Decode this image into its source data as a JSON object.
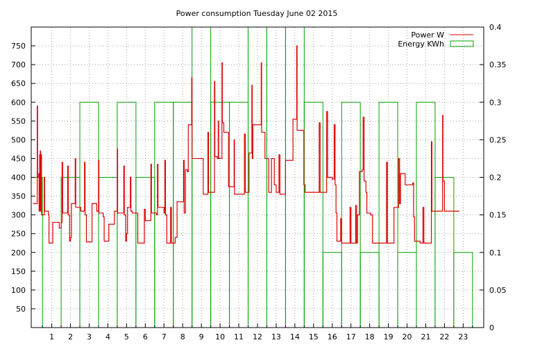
{
  "chart_data": {
    "type": "line",
    "title": "Power consumption Tuesday June 02 2015",
    "xlabel": "",
    "ylabel": "",
    "xlim": [
      -0.1,
      24.1
    ],
    "ylim": [
      0,
      800
    ],
    "y2lim": [
      0,
      0.4
    ],
    "x_ticks": [
      "1",
      "2",
      "3",
      "4",
      "5",
      "6",
      "7",
      "8",
      "9",
      "10",
      "11",
      "12",
      "13",
      "14",
      "15",
      "16",
      "17",
      "18",
      "19",
      "20",
      "21",
      "22",
      "23"
    ],
    "y_ticks": [
      "50",
      "100",
      "150",
      "200",
      "250",
      "300",
      "350",
      "400",
      "450",
      "500",
      "550",
      "600",
      "650",
      "700",
      "750"
    ],
    "y2_ticks": [
      "0",
      "0.05",
      "0.1",
      "0.15",
      "0.2",
      "0.25",
      "0.3",
      "0.35",
      "0.4"
    ],
    "grid": true,
    "legend": "top-right",
    "series": [
      {
        "name": "Power W",
        "axis": "left",
        "style": "step",
        "color": "#dd0000",
        "points": [
          [
            0.0,
            330
          ],
          [
            0.2,
            330
          ],
          [
            0.22,
            590
          ],
          [
            0.24,
            400
          ],
          [
            0.3,
            410
          ],
          [
            0.32,
            310
          ],
          [
            0.35,
            460
          ],
          [
            0.36,
            320
          ],
          [
            0.38,
            470
          ],
          [
            0.4,
            310
          ],
          [
            0.43,
            460
          ],
          [
            0.45,
            300
          ],
          [
            0.55,
            300
          ],
          [
            0.6,
            400
          ],
          [
            0.62,
            310
          ],
          [
            0.75,
            310
          ],
          [
            0.82,
            300
          ],
          [
            0.85,
            225
          ],
          [
            1.0,
            225
          ],
          [
            1.05,
            280
          ],
          [
            1.3,
            280
          ],
          [
            1.4,
            265
          ],
          [
            1.5,
            280
          ],
          [
            1.55,
            440
          ],
          [
            1.58,
            305
          ],
          [
            1.8,
            305
          ],
          [
            1.85,
            430
          ],
          [
            1.88,
            300
          ],
          [
            1.95,
            230
          ],
          [
            2.0,
            240
          ],
          [
            2.05,
            330
          ],
          [
            2.2,
            330
          ],
          [
            2.25,
            450
          ],
          [
            2.28,
            320
          ],
          [
            2.5,
            320
          ],
          [
            2.55,
            310
          ],
          [
            2.75,
            440
          ],
          [
            2.78,
            300
          ],
          [
            2.85,
            228
          ],
          [
            3.1,
            228
          ],
          [
            3.15,
            330
          ],
          [
            3.35,
            330
          ],
          [
            3.4,
            310
          ],
          [
            3.5,
            445
          ],
          [
            3.52,
            305
          ],
          [
            3.75,
            295
          ],
          [
            3.8,
            230
          ],
          [
            3.95,
            230
          ],
          [
            4.05,
            275
          ],
          [
            4.3,
            275
          ],
          [
            4.35,
            310
          ],
          [
            4.5,
            475
          ],
          [
            4.52,
            305
          ],
          [
            4.8,
            305
          ],
          [
            4.85,
            430
          ],
          [
            4.88,
            300
          ],
          [
            4.95,
            230
          ],
          [
            5.0,
            250
          ],
          [
            5.05,
            320
          ],
          [
            5.15,
            320
          ],
          [
            5.2,
            400
          ],
          [
            5.23,
            310
          ],
          [
            5.3,
            305
          ],
          [
            5.55,
            305
          ],
          [
            5.6,
            225
          ],
          [
            5.9,
            225
          ],
          [
            5.95,
            315
          ],
          [
            6.0,
            285
          ],
          [
            6.2,
            285
          ],
          [
            6.3,
            435
          ],
          [
            6.33,
            305
          ],
          [
            6.6,
            300
          ],
          [
            6.65,
            435
          ],
          [
            6.68,
            320
          ],
          [
            6.9,
            320
          ],
          [
            7.0,
            305
          ],
          [
            7.05,
            445
          ],
          [
            7.08,
            300
          ],
          [
            7.15,
            225
          ],
          [
            7.3,
            225
          ],
          [
            7.35,
            320
          ],
          [
            7.4,
            225
          ],
          [
            7.55,
            225
          ],
          [
            7.6,
            240
          ],
          [
            7.7,
            335
          ],
          [
            7.95,
            335
          ],
          [
            8.05,
            445
          ],
          [
            8.08,
            305
          ],
          [
            8.15,
            420
          ],
          [
            8.25,
            415
          ],
          [
            8.3,
            540
          ],
          [
            8.45,
            540
          ],
          [
            8.48,
            665
          ],
          [
            8.5,
            450
          ],
          [
            9.05,
            450
          ],
          [
            9.1,
            355
          ],
          [
            9.3,
            355
          ],
          [
            9.35,
            520
          ],
          [
            9.38,
            360
          ],
          [
            9.6,
            360
          ],
          [
            9.7,
            655
          ],
          [
            9.72,
            455
          ],
          [
            9.85,
            450
          ],
          [
            9.9,
            550
          ],
          [
            9.92,
            450
          ],
          [
            10.05,
            450
          ],
          [
            10.1,
            705
          ],
          [
            10.12,
            545
          ],
          [
            10.2,
            520
          ],
          [
            10.25,
            520
          ],
          [
            10.4,
            520
          ],
          [
            10.45,
            375
          ],
          [
            10.55,
            375
          ],
          [
            10.75,
            500
          ],
          [
            10.77,
            355
          ],
          [
            11.0,
            355
          ],
          [
            11.25,
            355
          ],
          [
            11.3,
            515
          ],
          [
            11.35,
            360
          ],
          [
            11.5,
            360
          ],
          [
            11.55,
            465
          ],
          [
            11.7,
            645
          ],
          [
            11.72,
            450
          ],
          [
            11.75,
            540
          ],
          [
            12.1,
            540
          ],
          [
            12.2,
            705
          ],
          [
            12.22,
            520
          ],
          [
            12.3,
            520
          ],
          [
            12.4,
            450
          ],
          [
            12.6,
            360
          ],
          [
            12.75,
            450
          ],
          [
            12.85,
            450
          ],
          [
            12.9,
            380
          ],
          [
            13.0,
            360
          ],
          [
            13.15,
            460
          ],
          [
            13.2,
            355
          ],
          [
            13.45,
            355
          ],
          [
            13.5,
            445
          ],
          [
            13.8,
            445
          ],
          [
            13.9,
            555
          ],
          [
            14.05,
            555
          ],
          [
            14.1,
            750
          ],
          [
            14.12,
            525
          ],
          [
            14.45,
            525
          ],
          [
            14.48,
            380
          ],
          [
            14.55,
            360
          ],
          [
            15.05,
            360
          ],
          [
            15.2,
            360
          ],
          [
            15.3,
            545
          ],
          [
            15.35,
            360
          ],
          [
            15.6,
            360
          ],
          [
            15.7,
            575
          ],
          [
            15.75,
            400
          ],
          [
            15.85,
            400
          ],
          [
            16.0,
            395
          ],
          [
            16.1,
            540
          ],
          [
            16.15,
            380
          ],
          [
            16.2,
            305
          ],
          [
            16.25,
            230
          ],
          [
            16.4,
            230
          ],
          [
            16.45,
            290
          ],
          [
            16.5,
            225
          ],
          [
            16.85,
            225
          ],
          [
            16.95,
            320
          ],
          [
            17.0,
            225
          ],
          [
            17.2,
            225
          ],
          [
            17.25,
            325
          ],
          [
            17.3,
            225
          ],
          [
            17.35,
            300
          ],
          [
            17.45,
            415
          ],
          [
            17.6,
            420
          ],
          [
            17.65,
            560
          ],
          [
            17.7,
            390
          ],
          [
            17.8,
            360
          ],
          [
            17.85,
            305
          ],
          [
            18.05,
            300
          ],
          [
            18.15,
            225
          ],
          [
            18.3,
            225
          ],
          [
            18.55,
            225
          ],
          [
            18.8,
            225
          ],
          [
            18.9,
            440
          ],
          [
            18.95,
            225
          ],
          [
            19.1,
            225
          ],
          [
            19.3,
            320
          ],
          [
            19.35,
            320
          ],
          [
            19.45,
            320
          ],
          [
            19.55,
            450
          ],
          [
            19.6,
            330
          ],
          [
            19.65,
            410
          ],
          [
            19.8,
            410
          ],
          [
            19.9,
            380
          ],
          [
            20.2,
            380
          ],
          [
            20.3,
            385
          ],
          [
            20.35,
            295
          ],
          [
            20.4,
            230
          ],
          [
            20.6,
            230
          ],
          [
            20.7,
            225
          ],
          [
            20.8,
            225
          ],
          [
            20.85,
            320
          ],
          [
            20.9,
            225
          ],
          [
            21.1,
            225
          ],
          [
            21.15,
            225
          ],
          [
            21.25,
            225
          ],
          [
            21.3,
            495
          ],
          [
            21.33,
            310
          ],
          [
            21.45,
            310
          ],
          [
            21.8,
            310
          ],
          [
            21.9,
            565
          ],
          [
            21.92,
            390
          ],
          [
            22.0,
            310
          ],
          [
            22.5,
            310
          ],
          [
            22.8,
            310
          ]
        ]
      },
      {
        "name": "Energy KWh",
        "axis": "right",
        "style": "boxes",
        "color": "#00a000",
        "boxes": [
          [
            -0.1,
            0.5,
            0.2
          ],
          [
            0.5,
            1.5,
            0
          ],
          [
            1.5,
            2.5,
            0.2
          ],
          [
            2.5,
            3.5,
            0.3
          ],
          [
            3.5,
            4.5,
            0.2
          ],
          [
            4.5,
            5.5,
            0.3
          ],
          [
            5.5,
            6.5,
            0.2
          ],
          [
            6.5,
            7.5,
            0.3
          ],
          [
            7.5,
            8.5,
            0.3
          ],
          [
            8.5,
            9.5,
            0.4
          ],
          [
            9.5,
            10.5,
            0.3
          ],
          [
            10.5,
            11.5,
            0.3
          ],
          [
            11.5,
            12.5,
            0.4
          ],
          [
            12.5,
            13.5,
            0.4
          ],
          [
            13.5,
            14.5,
            0.4
          ],
          [
            14.5,
            15.5,
            0.3
          ],
          [
            15.5,
            16.5,
            0.1
          ],
          [
            16.5,
            17.5,
            0.3
          ],
          [
            17.5,
            18.5,
            0.1
          ],
          [
            18.5,
            19.5,
            0.3
          ],
          [
            19.5,
            20.5,
            0.1
          ],
          [
            20.5,
            21.5,
            0.3
          ],
          [
            21.5,
            22.5,
            0.2
          ],
          [
            22.5,
            23.5,
            0.1
          ],
          [
            23.5,
            24.1,
            0
          ]
        ]
      }
    ]
  }
}
